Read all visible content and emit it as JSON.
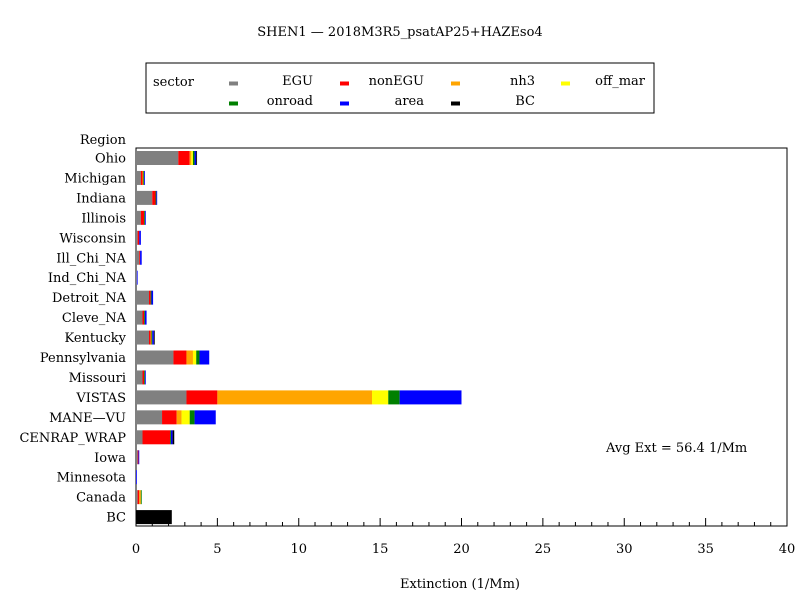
{
  "chart_data": {
    "type": "bar",
    "orientation": "horizontal",
    "stacked": true,
    "title": "SHEN1 — 2018M3R5_psatAP25+HAZEso4",
    "xlabel": "Extinction (1/Mm)",
    "ylabel": "Region",
    "xlim": [
      0,
      40
    ],
    "x_ticks": [
      "0",
      "5",
      "10",
      "15",
      "20",
      "25",
      "30",
      "35",
      "40"
    ],
    "grid": false,
    "legend_position": "top",
    "legend_title": "sector",
    "annotation": "Avg Ext =  56.4  1/Mm",
    "categories": [
      "Ohio",
      "Michigan",
      "Indiana",
      "Illinois",
      "Wisconsin",
      "Ill_Chi_NA",
      "Ind_Chi_NA",
      "Detroit_NA",
      "Cleve_NA",
      "Kentucky",
      "Pennsylvania",
      "Missouri",
      "VISTAS",
      "MANE—VU",
      "CENRAP_WRAP",
      "Iowa",
      "Minnesota",
      "Canada",
      "BC"
    ],
    "series": [
      {
        "name": "EGU",
        "color": "#808080",
        "values": [
          2.6,
          0.3,
          1.0,
          0.3,
          0.1,
          0.2,
          0.05,
          0.8,
          0.4,
          0.8,
          2.3,
          0.4,
          3.1,
          1.6,
          0.4,
          0.1,
          0.0,
          0.1,
          0.0
        ]
      },
      {
        "name": "nonEGU",
        "color": "#ff0000",
        "values": [
          0.7,
          0.1,
          0.2,
          0.2,
          0.1,
          0.05,
          0.0,
          0.1,
          0.1,
          0.1,
          0.8,
          0.1,
          1.9,
          0.9,
          1.7,
          0.05,
          0.0,
          0.1,
          0.0
        ]
      },
      {
        "name": "nh3",
        "color": "#ffa500",
        "values": [
          0.1,
          0.05,
          0.0,
          0.0,
          0.0,
          0.0,
          0.0,
          0.0,
          0.0,
          0.05,
          0.4,
          0.0,
          9.5,
          0.3,
          0.0,
          0.0,
          0.0,
          0.1,
          0.0
        ]
      },
      {
        "name": "off_mar",
        "color": "#ffff00",
        "values": [
          0.1,
          0.0,
          0.0,
          0.0,
          0.0,
          0.0,
          0.0,
          0.0,
          0.0,
          0.0,
          0.2,
          0.0,
          1.0,
          0.5,
          0.0,
          0.0,
          0.0,
          0.0,
          0.0
        ]
      },
      {
        "name": "onroad",
        "color": "#008000",
        "values": [
          0.1,
          0.05,
          0.05,
          0.05,
          0.0,
          0.0,
          0.0,
          0.05,
          0.05,
          0.05,
          0.2,
          0.05,
          0.7,
          0.3,
          0.05,
          0.0,
          0.0,
          0.05,
          0.0
        ]
      },
      {
        "name": "area",
        "color": "#0000ff",
        "values": [
          0.1,
          0.05,
          0.05,
          0.05,
          0.1,
          0.1,
          0.05,
          0.1,
          0.1,
          0.1,
          0.6,
          0.05,
          3.8,
          1.3,
          0.1,
          0.05,
          0.05,
          0.0,
          0.0
        ]
      },
      {
        "name": "BC",
        "color": "#000000",
        "values": [
          0.05,
          0.0,
          0.0,
          0.0,
          0.0,
          0.0,
          0.0,
          0.0,
          0.0,
          0.05,
          0.0,
          0.0,
          0.0,
          0.0,
          0.1,
          0.0,
          0.0,
          0.0,
          2.2
        ]
      }
    ]
  }
}
